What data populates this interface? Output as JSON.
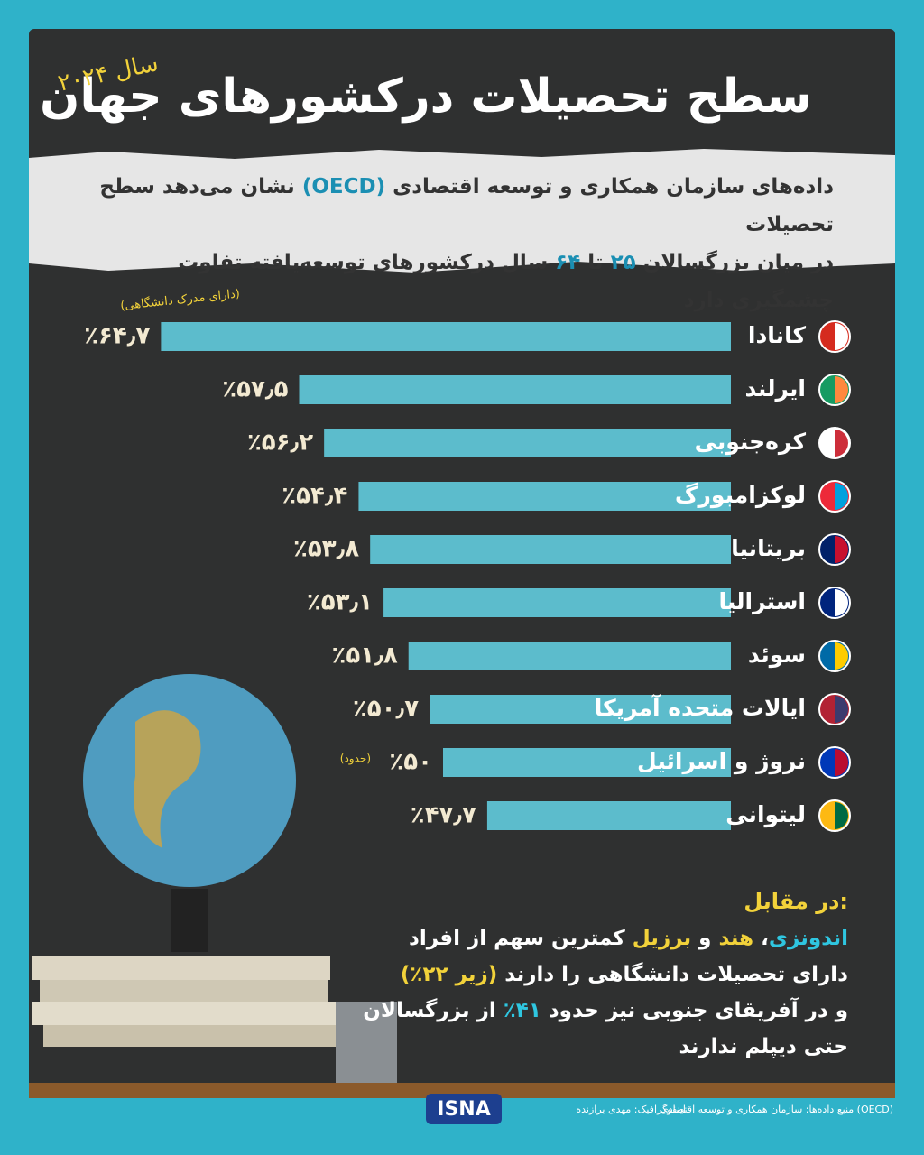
{
  "header": {
    "title": "سطح تحصیلات درکشورهای جهان",
    "year": "سال ۲۰۲۴",
    "subtitle": [
      "داده‌های سازمان همکاری و توسعه اقتصادی",
      "(OECD)",
      "نشان می‌دهد سطح تحصیلات",
      "در میان بزرگسالان",
      "۲۵",
      "تا",
      "۶۴",
      "سال درکشورهای توسعه‌یافته تفاوت چشمگیری دارد"
    ]
  },
  "chart_data": {
    "type": "bar",
    "orientation": "horizontal",
    "categories": [
      "کانادا",
      "ایرلند",
      "کره‌جنوبی",
      "لوکزامبورگ",
      "بریتانیا",
      "استرالیا",
      "سوئد",
      "ایالات متحده آمریکا",
      "نروژ و اسرائیل",
      "لیتوانی"
    ],
    "values": [
      64.7,
      57.5,
      56.2,
      54.4,
      53.8,
      53.1,
      51.8,
      50.7,
      50,
      47.7
    ],
    "value_labels": [
      "٪۶۴٫۷",
      "٪۵۷٫۵",
      "٪۵۶٫۲",
      "٪۵۴٫۴",
      "٪۵۳٫۸",
      "٪۵۳٫۱",
      "٪۵۱٫۸",
      "٪۵۰٫۷",
      "٪۵۰",
      "٪۴۷٫۷"
    ],
    "color": "#5cbccc",
    "xlim": [
      35,
      65
    ],
    "annotation": "(دارای مدرک دانشگاهی)",
    "note": "(حدود)"
  },
  "footer": {
    "heading": "در مقابل:",
    "lines": [
      [
        "اندونزی",
        "،",
        "هند",
        "و",
        "برزیل",
        "کمترین سهم از افراد"
      ],
      [
        "دارای تحصیلات دانشگاهی را دارند",
        "(زیر ۲۲٪)"
      ],
      [
        "و در آفریقای جنوبی نیز حدود",
        "۴۱٪",
        "از بزرگسالان"
      ],
      [
        "حتی دیپلم ندارند"
      ]
    ],
    "source": "منبع داده‌ها: سازمان همکاری و توسعه اقتصادی (OECD)",
    "credit": "اینفوگرافیک: مهدی برازنده",
    "logo": "ISNA"
  }
}
